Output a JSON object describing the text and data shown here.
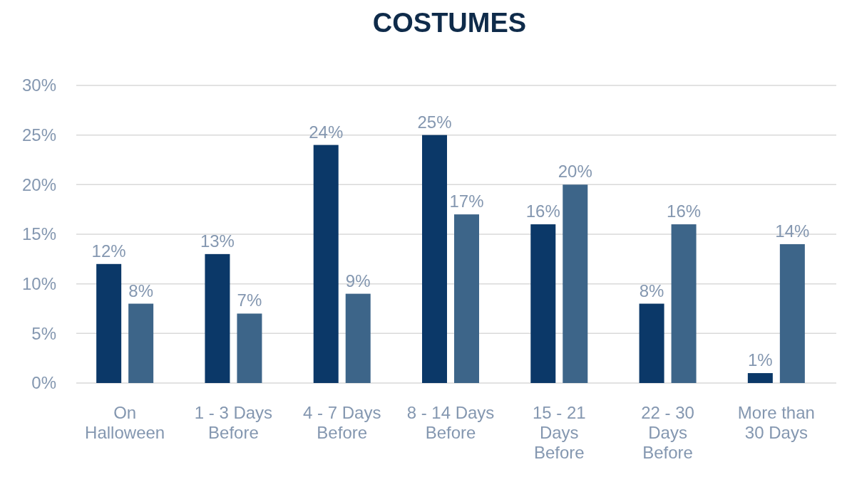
{
  "chart_data": {
    "type": "bar",
    "title": "COSTUMES",
    "categories": [
      "On Halloween",
      "1 - 3 Days Before",
      "4 - 7 Days Before",
      "8 - 14 Days Before",
      "15 - 21 Days Before",
      "22 - 30 Days Before",
      "More than 30 Days"
    ],
    "series": [
      {
        "color": "#0b3868",
        "values": [
          12,
          13,
          24,
          25,
          16,
          8,
          1
        ],
        "value_labels": [
          "12%",
          "13%",
          "24%",
          "25%",
          "16%",
          "8%",
          "1%"
        ]
      },
      {
        "color": "#3d6589",
        "values": [
          8,
          7,
          9,
          17,
          20,
          16,
          14
        ],
        "value_labels": [
          "8%",
          "7%",
          "9%",
          "17%",
          "20%",
          "16%",
          "14%"
        ]
      }
    ],
    "ylim": [
      0,
      30
    ],
    "yticks": [
      {
        "value": 0,
        "label": "0%"
      },
      {
        "value": 5,
        "label": "5%"
      },
      {
        "value": 10,
        "label": "10%"
      },
      {
        "value": 15,
        "label": "15%"
      },
      {
        "value": 20,
        "label": "20%"
      },
      {
        "value": 25,
        "label": "25%"
      },
      {
        "value": 30,
        "label": "30%"
      }
    ],
    "grid": "y"
  }
}
